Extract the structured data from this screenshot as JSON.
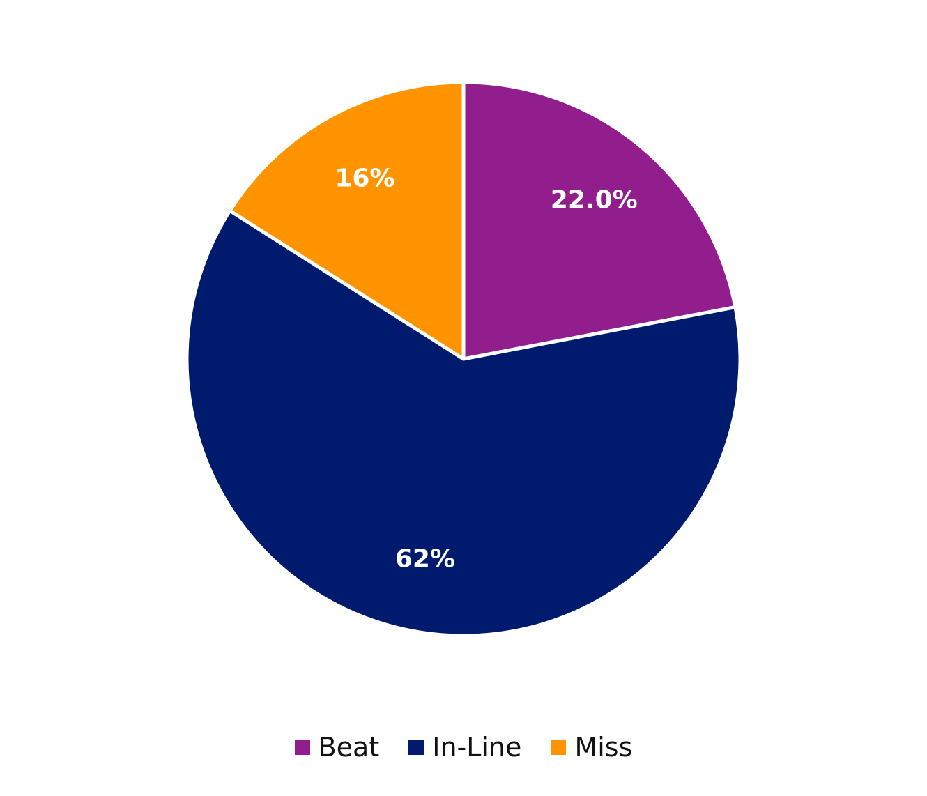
{
  "chart_data": {
    "type": "pie",
    "categories": [
      "Beat",
      "In-Line",
      "Miss"
    ],
    "values": [
      22.0,
      62,
      16
    ],
    "data_labels": [
      "22.0%",
      "62%",
      "16%"
    ],
    "colors": [
      "#921E8E",
      "#001A6E",
      "#FF9400"
    ],
    "start": "12 o'clock",
    "direction": "clockwise",
    "legend_position": "bottom"
  },
  "legend": {
    "items": [
      {
        "label": "Beat",
        "color": "#921E8E"
      },
      {
        "label": "In-Line",
        "color": "#001A6E"
      },
      {
        "label": "Miss",
        "color": "#FF9400"
      }
    ]
  }
}
